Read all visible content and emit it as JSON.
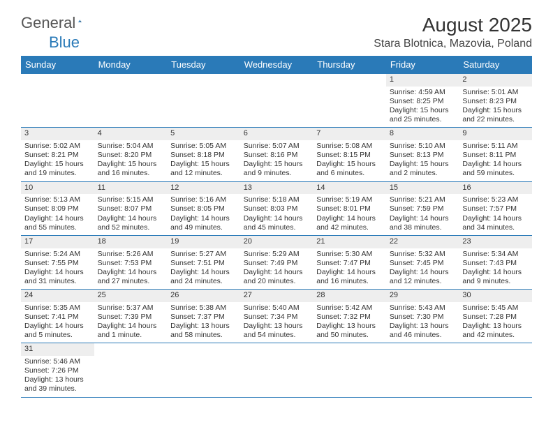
{
  "brand": {
    "general": "General",
    "blue": "Blue"
  },
  "title": "August 2025",
  "location": "Stara Blotnica, Mazovia, Poland",
  "colors": {
    "accent": "#2a7ab8",
    "header_bg": "#2a7ab8",
    "stripe": "#eeeeee"
  },
  "day_headers": [
    "Sunday",
    "Monday",
    "Tuesday",
    "Wednesday",
    "Thursday",
    "Friday",
    "Saturday"
  ],
  "weeks": [
    [
      null,
      null,
      null,
      null,
      null,
      {
        "n": "1",
        "sr": "Sunrise: 4:59 AM",
        "ss": "Sunset: 8:25 PM",
        "dl1": "Daylight: 15 hours",
        "dl2": "and 25 minutes."
      },
      {
        "n": "2",
        "sr": "Sunrise: 5:01 AM",
        "ss": "Sunset: 8:23 PM",
        "dl1": "Daylight: 15 hours",
        "dl2": "and 22 minutes."
      }
    ],
    [
      {
        "n": "3",
        "sr": "Sunrise: 5:02 AM",
        "ss": "Sunset: 8:21 PM",
        "dl1": "Daylight: 15 hours",
        "dl2": "and 19 minutes."
      },
      {
        "n": "4",
        "sr": "Sunrise: 5:04 AM",
        "ss": "Sunset: 8:20 PM",
        "dl1": "Daylight: 15 hours",
        "dl2": "and 16 minutes."
      },
      {
        "n": "5",
        "sr": "Sunrise: 5:05 AM",
        "ss": "Sunset: 8:18 PM",
        "dl1": "Daylight: 15 hours",
        "dl2": "and 12 minutes."
      },
      {
        "n": "6",
        "sr": "Sunrise: 5:07 AM",
        "ss": "Sunset: 8:16 PM",
        "dl1": "Daylight: 15 hours",
        "dl2": "and 9 minutes."
      },
      {
        "n": "7",
        "sr": "Sunrise: 5:08 AM",
        "ss": "Sunset: 8:15 PM",
        "dl1": "Daylight: 15 hours",
        "dl2": "and 6 minutes."
      },
      {
        "n": "8",
        "sr": "Sunrise: 5:10 AM",
        "ss": "Sunset: 8:13 PM",
        "dl1": "Daylight: 15 hours",
        "dl2": "and 2 minutes."
      },
      {
        "n": "9",
        "sr": "Sunrise: 5:11 AM",
        "ss": "Sunset: 8:11 PM",
        "dl1": "Daylight: 14 hours",
        "dl2": "and 59 minutes."
      }
    ],
    [
      {
        "n": "10",
        "sr": "Sunrise: 5:13 AM",
        "ss": "Sunset: 8:09 PM",
        "dl1": "Daylight: 14 hours",
        "dl2": "and 55 minutes."
      },
      {
        "n": "11",
        "sr": "Sunrise: 5:15 AM",
        "ss": "Sunset: 8:07 PM",
        "dl1": "Daylight: 14 hours",
        "dl2": "and 52 minutes."
      },
      {
        "n": "12",
        "sr": "Sunrise: 5:16 AM",
        "ss": "Sunset: 8:05 PM",
        "dl1": "Daylight: 14 hours",
        "dl2": "and 49 minutes."
      },
      {
        "n": "13",
        "sr": "Sunrise: 5:18 AM",
        "ss": "Sunset: 8:03 PM",
        "dl1": "Daylight: 14 hours",
        "dl2": "and 45 minutes."
      },
      {
        "n": "14",
        "sr": "Sunrise: 5:19 AM",
        "ss": "Sunset: 8:01 PM",
        "dl1": "Daylight: 14 hours",
        "dl2": "and 42 minutes."
      },
      {
        "n": "15",
        "sr": "Sunrise: 5:21 AM",
        "ss": "Sunset: 7:59 PM",
        "dl1": "Daylight: 14 hours",
        "dl2": "and 38 minutes."
      },
      {
        "n": "16",
        "sr": "Sunrise: 5:23 AM",
        "ss": "Sunset: 7:57 PM",
        "dl1": "Daylight: 14 hours",
        "dl2": "and 34 minutes."
      }
    ],
    [
      {
        "n": "17",
        "sr": "Sunrise: 5:24 AM",
        "ss": "Sunset: 7:55 PM",
        "dl1": "Daylight: 14 hours",
        "dl2": "and 31 minutes."
      },
      {
        "n": "18",
        "sr": "Sunrise: 5:26 AM",
        "ss": "Sunset: 7:53 PM",
        "dl1": "Daylight: 14 hours",
        "dl2": "and 27 minutes."
      },
      {
        "n": "19",
        "sr": "Sunrise: 5:27 AM",
        "ss": "Sunset: 7:51 PM",
        "dl1": "Daylight: 14 hours",
        "dl2": "and 24 minutes."
      },
      {
        "n": "20",
        "sr": "Sunrise: 5:29 AM",
        "ss": "Sunset: 7:49 PM",
        "dl1": "Daylight: 14 hours",
        "dl2": "and 20 minutes."
      },
      {
        "n": "21",
        "sr": "Sunrise: 5:30 AM",
        "ss": "Sunset: 7:47 PM",
        "dl1": "Daylight: 14 hours",
        "dl2": "and 16 minutes."
      },
      {
        "n": "22",
        "sr": "Sunrise: 5:32 AM",
        "ss": "Sunset: 7:45 PM",
        "dl1": "Daylight: 14 hours",
        "dl2": "and 12 minutes."
      },
      {
        "n": "23",
        "sr": "Sunrise: 5:34 AM",
        "ss": "Sunset: 7:43 PM",
        "dl1": "Daylight: 14 hours",
        "dl2": "and 9 minutes."
      }
    ],
    [
      {
        "n": "24",
        "sr": "Sunrise: 5:35 AM",
        "ss": "Sunset: 7:41 PM",
        "dl1": "Daylight: 14 hours",
        "dl2": "and 5 minutes."
      },
      {
        "n": "25",
        "sr": "Sunrise: 5:37 AM",
        "ss": "Sunset: 7:39 PM",
        "dl1": "Daylight: 14 hours",
        "dl2": "and 1 minute."
      },
      {
        "n": "26",
        "sr": "Sunrise: 5:38 AM",
        "ss": "Sunset: 7:37 PM",
        "dl1": "Daylight: 13 hours",
        "dl2": "and 58 minutes."
      },
      {
        "n": "27",
        "sr": "Sunrise: 5:40 AM",
        "ss": "Sunset: 7:34 PM",
        "dl1": "Daylight: 13 hours",
        "dl2": "and 54 minutes."
      },
      {
        "n": "28",
        "sr": "Sunrise: 5:42 AM",
        "ss": "Sunset: 7:32 PM",
        "dl1": "Daylight: 13 hours",
        "dl2": "and 50 minutes."
      },
      {
        "n": "29",
        "sr": "Sunrise: 5:43 AM",
        "ss": "Sunset: 7:30 PM",
        "dl1": "Daylight: 13 hours",
        "dl2": "and 46 minutes."
      },
      {
        "n": "30",
        "sr": "Sunrise: 5:45 AM",
        "ss": "Sunset: 7:28 PM",
        "dl1": "Daylight: 13 hours",
        "dl2": "and 42 minutes."
      }
    ],
    [
      {
        "n": "31",
        "sr": "Sunrise: 5:46 AM",
        "ss": "Sunset: 7:26 PM",
        "dl1": "Daylight: 13 hours",
        "dl2": "and 39 minutes."
      },
      null,
      null,
      null,
      null,
      null,
      null
    ]
  ]
}
